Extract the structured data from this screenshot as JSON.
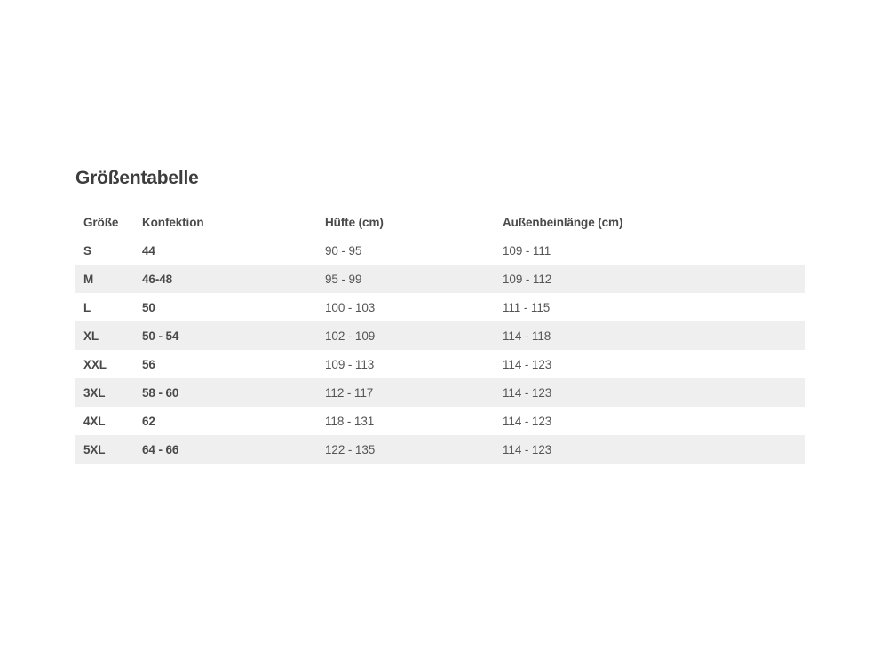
{
  "section": {
    "title": "Größentabelle"
  },
  "size_table": {
    "columns": [
      "Größe",
      "Konfektion",
      "Hüfte (cm)",
      "Außenbeinlänge (cm)"
    ],
    "rows": [
      [
        "S",
        "44",
        "90 - 95",
        "109 - 111"
      ],
      [
        "M",
        "46-48",
        "95 - 99",
        "109 - 112"
      ],
      [
        "L",
        "50",
        "100 - 103",
        "111 - 115"
      ],
      [
        "XL",
        "50 - 54",
        "102 - 109",
        "114 - 118"
      ],
      [
        "XXL",
        "56",
        "109 - 113",
        "114 - 123"
      ],
      [
        "3XL",
        "58 - 60",
        "112 - 117",
        "114 - 123"
      ],
      [
        "4XL",
        "62",
        "118 - 131",
        "114 - 123"
      ],
      [
        "5XL",
        "64 - 66",
        "122 - 135",
        "114 - 123"
      ]
    ]
  },
  "colors": {
    "background": "#ffffff",
    "title_text": "#3d3d3d",
    "header_text": "#4a4a4a",
    "cell_text_bold": "#4a4a4a",
    "cell_text_regular": "#555555",
    "row_stripe": "#efefef"
  }
}
